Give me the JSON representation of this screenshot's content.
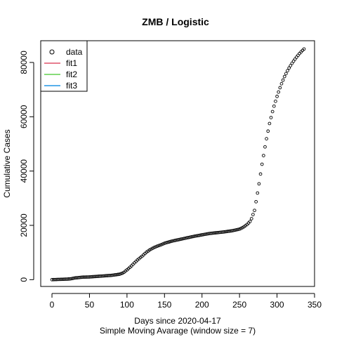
{
  "chart_data": {
    "type": "scatter",
    "title": "ZMB / Logistic",
    "xlabel": "Days since 2020-04-17",
    "xlabel_sub": "Simple Moving Avarage (window size = 7)",
    "ylabel": "Cumulative Cases",
    "xlim": [
      -15,
      350
    ],
    "ylim": [
      -2500,
      88000
    ],
    "x_ticks": [
      0,
      50,
      100,
      150,
      200,
      250,
      300,
      350
    ],
    "y_ticks": [
      0,
      20000,
      40000,
      60000,
      80000
    ],
    "grid": false,
    "legend": {
      "placement": "top-left",
      "entries": [
        {
          "label": "data",
          "marker": "circle-open",
          "color": "#000000"
        },
        {
          "label": "fit1",
          "marker": "line",
          "color": "#DF536B"
        },
        {
          "label": "fit2",
          "marker": "line",
          "color": "#61D04F"
        },
        {
          "label": "fit3",
          "marker": "line",
          "color": "#2297E6"
        }
      ]
    },
    "series": [
      {
        "name": "data",
        "style": "points-open-circle",
        "x": [
          0,
          10,
          20,
          25,
          30,
          40,
          50,
          60,
          70,
          80,
          90,
          95,
          100,
          105,
          110,
          115,
          120,
          125,
          130,
          135,
          140,
          145,
          150,
          160,
          170,
          180,
          190,
          200,
          210,
          220,
          230,
          240,
          250,
          255,
          260,
          265,
          270,
          275,
          280,
          285,
          290,
          295,
          300,
          305,
          310,
          315,
          320,
          325,
          330,
          335,
          337
        ],
        "y": [
          0,
          100,
          200,
          300,
          600,
          900,
          1000,
          1200,
          1400,
          1600,
          2000,
          2500,
          3600,
          4800,
          6200,
          7500,
          8600,
          9900,
          10900,
          11700,
          12300,
          12800,
          13400,
          14200,
          14800,
          15400,
          16000,
          16500,
          17000,
          17300,
          17600,
          18000,
          18600,
          19300,
          20300,
          21700,
          25500,
          33500,
          42500,
          50500,
          57500,
          63000,
          67500,
          71500,
          74800,
          77500,
          79700,
          81600,
          83300,
          84700,
          85200
        ]
      }
    ]
  }
}
